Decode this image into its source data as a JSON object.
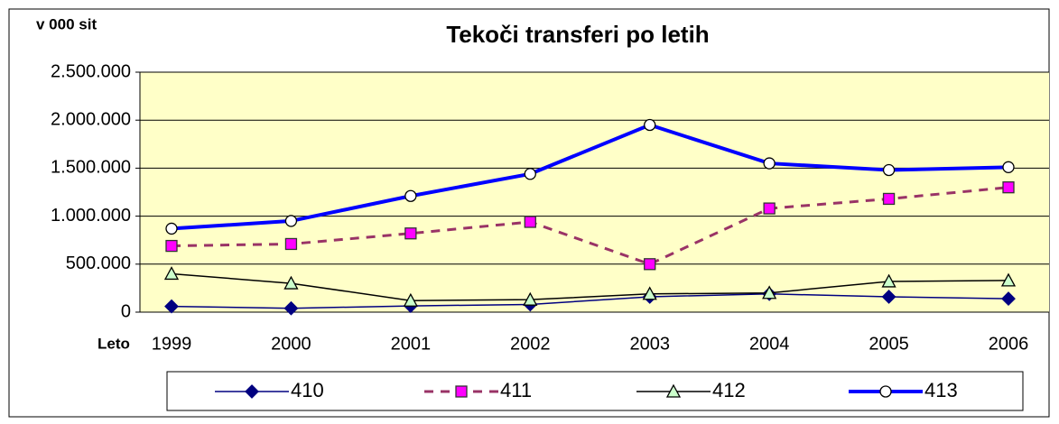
{
  "chart_data": {
    "type": "line",
    "title": "Tekoči transferi po letih",
    "y_label": "v 000 sit",
    "x_label": "Leto",
    "categories": [
      "1999",
      "2000",
      "2001",
      "2002",
      "2003",
      "2004",
      "2005",
      "2006"
    ],
    "series": [
      {
        "name": "410",
        "color": "#000080",
        "marker": "diamond",
        "marker_fill": "#000080",
        "width": 1.5,
        "dash": false,
        "values": [
          60000,
          40000,
          65000,
          80000,
          160000,
          190000,
          160000,
          140000
        ]
      },
      {
        "name": "411",
        "color": "#993366",
        "marker": "square",
        "marker_fill": "#ff00ff",
        "width": 3,
        "dash": true,
        "values": [
          690000,
          710000,
          820000,
          940000,
          500000,
          1080000,
          1180000,
          1300000
        ]
      },
      {
        "name": "412",
        "color": "#000000",
        "marker": "triangle",
        "marker_fill": "#ccffcc",
        "width": 1.5,
        "dash": false,
        "values": [
          400000,
          300000,
          120000,
          130000,
          190000,
          200000,
          320000,
          330000
        ]
      },
      {
        "name": "413",
        "color": "#0000ff",
        "marker": "circle",
        "marker_fill": "#ffffff",
        "width": 4,
        "dash": false,
        "values": [
          870000,
          950000,
          1210000,
          1440000,
          1950000,
          1550000,
          1480000,
          1510000
        ]
      }
    ],
    "ylim": [
      0,
      2500000
    ],
    "yticks": [
      0,
      {
        "value": 500000,
        "label": "500.000"
      },
      {
        "value": 1000000,
        "label": "1.000.000"
      },
      {
        "value": 1500000,
        "label": "1.500.000"
      },
      {
        "value": 2000000,
        "label": "2.000.000"
      },
      {
        "value": 2500000,
        "label": "2.500.000"
      }
    ],
    "grid": true,
    "plot_background": "#ffffc8",
    "legend": "bottom"
  }
}
